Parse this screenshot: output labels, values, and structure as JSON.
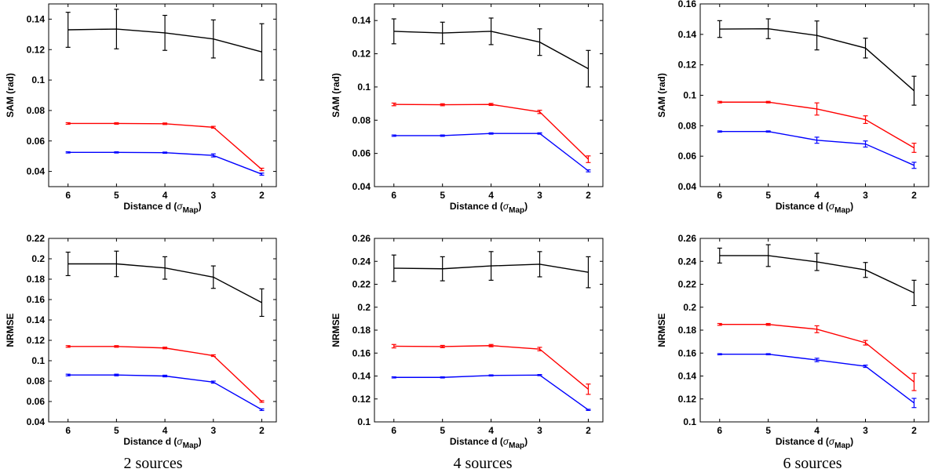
{
  "captions": [
    "2 sources",
    "4 sources",
    "6 sources"
  ],
  "colors": {
    "black": "#000000",
    "red": "#ff0000",
    "blue": "#0000ff"
  },
  "chart_data": [
    {
      "type": "line",
      "xlabel": "Distance d",
      "xlabel_sub": "Map",
      "ylabel": "SAM (rad)",
      "x": [
        6,
        5,
        4,
        3,
        2
      ],
      "xlim": [
        6.4,
        1.7
      ],
      "ylim": [
        0.03,
        0.15
      ],
      "yticks": [
        0.04,
        0.06,
        0.08,
        0.1,
        0.12,
        0.14
      ],
      "ytick_labels": [
        "0.04",
        "0.06",
        "0.08",
        "0.1",
        "0.12",
        "0.14"
      ],
      "series": [
        {
          "name": "black",
          "color": "#000000",
          "values": [
            0.133,
            0.1335,
            0.131,
            0.127,
            0.1185
          ],
          "errors": [
            0.0115,
            0.013,
            0.0115,
            0.0125,
            0.0185
          ]
        },
        {
          "name": "red",
          "color": "#ff0000",
          "values": [
            0.0715,
            0.0715,
            0.0713,
            0.069,
            0.0413
          ],
          "errors": [
            0.0005,
            0.0005,
            0.0005,
            0.0006,
            0.0008
          ]
        },
        {
          "name": "blue",
          "color": "#0000ff",
          "values": [
            0.0525,
            0.0525,
            0.0523,
            0.0505,
            0.0382
          ],
          "errors": [
            0.0004,
            0.0004,
            0.0004,
            0.001,
            0.0007
          ]
        }
      ]
    },
    {
      "type": "line",
      "xlabel": "Distance d",
      "xlabel_sub": "Map",
      "ylabel": "SAM (rad)",
      "x": [
        6,
        5,
        4,
        3,
        2
      ],
      "xlim": [
        6.4,
        1.7
      ],
      "ylim": [
        0.04,
        0.15
      ],
      "yticks": [
        0.04,
        0.06,
        0.08,
        0.1,
        0.12,
        0.14
      ],
      "ytick_labels": [
        "0.04",
        "0.06",
        "0.08",
        "0.1",
        "0.12",
        "0.14"
      ],
      "series": [
        {
          "name": "black",
          "color": "#000000",
          "values": [
            0.1335,
            0.1325,
            0.1335,
            0.127,
            0.111
          ],
          "errors": [
            0.0075,
            0.0065,
            0.008,
            0.008,
            0.011
          ]
        },
        {
          "name": "red",
          "color": "#ff0000",
          "values": [
            0.0895,
            0.0893,
            0.0895,
            0.085,
            0.0565
          ],
          "errors": [
            0.0008,
            0.0006,
            0.0006,
            0.001,
            0.002
          ]
        },
        {
          "name": "blue",
          "color": "#0000ff",
          "values": [
            0.0707,
            0.0707,
            0.072,
            0.072,
            0.0495
          ],
          "errors": [
            0.0004,
            0.0004,
            0.0004,
            0.0004,
            0.0006
          ]
        }
      ]
    },
    {
      "type": "line",
      "xlabel": "Distance d",
      "xlabel_sub": "Map",
      "ylabel": "SAM (rad)",
      "x": [
        6,
        5,
        4,
        3,
        2
      ],
      "xlim": [
        6.4,
        1.7
      ],
      "ylim": [
        0.04,
        0.16
      ],
      "yticks": [
        0.04,
        0.06,
        0.08,
        0.1,
        0.12,
        0.14,
        0.16
      ],
      "ytick_labels": [
        "0.04",
        "0.06",
        "0.08",
        "0.1",
        "0.12",
        "0.14",
        "0.16"
      ],
      "series": [
        {
          "name": "black",
          "color": "#000000",
          "values": [
            0.1435,
            0.1437,
            0.1393,
            0.131,
            0.103
          ],
          "errors": [
            0.0055,
            0.0065,
            0.0095,
            0.0065,
            0.0095
          ]
        },
        {
          "name": "red",
          "color": "#ff0000",
          "values": [
            0.0955,
            0.0955,
            0.091,
            0.084,
            0.0655
          ],
          "errors": [
            0.0005,
            0.0005,
            0.004,
            0.0025,
            0.003
          ]
        },
        {
          "name": "blue",
          "color": "#0000ff",
          "values": [
            0.0762,
            0.0762,
            0.0705,
            0.068,
            0.054
          ],
          "errors": [
            0.0004,
            0.0004,
            0.002,
            0.002,
            0.002
          ]
        }
      ]
    },
    {
      "type": "line",
      "xlabel": "Distance d",
      "xlabel_sub": "Map",
      "ylabel": "NRMSE",
      "x": [
        6,
        5,
        4,
        3,
        2
      ],
      "xlim": [
        6.4,
        1.7
      ],
      "ylim": [
        0.04,
        0.22
      ],
      "yticks": [
        0.04,
        0.06,
        0.08,
        0.1,
        0.12,
        0.14,
        0.16,
        0.18,
        0.2,
        0.22
      ],
      "ytick_labels": [
        "0.04",
        "0.06",
        "0.08",
        "0.1",
        "0.12",
        "0.14",
        "0.16",
        "0.18",
        "0.2",
        "0.22"
      ],
      "series": [
        {
          "name": "black",
          "color": "#000000",
          "values": [
            0.195,
            0.195,
            0.191,
            0.182,
            0.157
          ],
          "errors": [
            0.0115,
            0.0125,
            0.011,
            0.011,
            0.0135
          ]
        },
        {
          "name": "red",
          "color": "#ff0000",
          "values": [
            0.114,
            0.114,
            0.1125,
            0.105,
            0.06
          ],
          "errors": [
            0.0008,
            0.0008,
            0.0008,
            0.0008,
            0.0008
          ]
        },
        {
          "name": "blue",
          "color": "#0000ff",
          "values": [
            0.086,
            0.086,
            0.085,
            0.079,
            0.052
          ],
          "errors": [
            0.0008,
            0.0008,
            0.0008,
            0.001,
            0.0008
          ]
        }
      ]
    },
    {
      "type": "line",
      "xlabel": "Distance d",
      "xlabel_sub": "Map",
      "ylabel": "NRMSE",
      "x": [
        6,
        5,
        4,
        3,
        2
      ],
      "xlim": [
        6.4,
        1.7
      ],
      "ylim": [
        0.1,
        0.26
      ],
      "yticks": [
        0.1,
        0.12,
        0.14,
        0.16,
        0.18,
        0.2,
        0.22,
        0.24,
        0.26
      ],
      "ytick_labels": [
        "0.1",
        "0.12",
        "0.14",
        "0.16",
        "0.18",
        "0.2",
        "0.22",
        "0.24",
        "0.26"
      ],
      "series": [
        {
          "name": "black",
          "color": "#000000",
          "values": [
            0.234,
            0.2335,
            0.236,
            0.2375,
            0.2305
          ],
          "errors": [
            0.0115,
            0.0105,
            0.0125,
            0.011,
            0.0135
          ]
        },
        {
          "name": "red",
          "color": "#ff0000",
          "values": [
            0.166,
            0.1657,
            0.1665,
            0.1635,
            0.1285
          ],
          "errors": [
            0.0015,
            0.001,
            0.001,
            0.0015,
            0.0045
          ]
        },
        {
          "name": "blue",
          "color": "#0000ff",
          "values": [
            0.1388,
            0.1388,
            0.1405,
            0.1408,
            0.1105
          ],
          "errors": [
            0.0005,
            0.0005,
            0.0005,
            0.0005,
            0.0005
          ]
        }
      ]
    },
    {
      "type": "line",
      "xlabel": "Distance d",
      "xlabel_sub": "Map",
      "ylabel": "NRMSE",
      "x": [
        6,
        5,
        4,
        3,
        2
      ],
      "xlim": [
        6.4,
        1.7
      ],
      "ylim": [
        0.1,
        0.26
      ],
      "yticks": [
        0.1,
        0.12,
        0.14,
        0.16,
        0.18,
        0.2,
        0.22,
        0.24,
        0.26
      ],
      "ytick_labels": [
        "0.1",
        "0.12",
        "0.14",
        "0.16",
        "0.18",
        "0.2",
        "0.22",
        "0.24",
        "0.26"
      ],
      "series": [
        {
          "name": "black",
          "color": "#000000",
          "values": [
            0.245,
            0.245,
            0.2395,
            0.2325,
            0.2125
          ],
          "errors": [
            0.0065,
            0.0095,
            0.0075,
            0.0065,
            0.011
          ]
        },
        {
          "name": "red",
          "color": "#ff0000",
          "values": [
            0.185,
            0.185,
            0.1808,
            0.169,
            0.1348
          ],
          "errors": [
            0.0008,
            0.0008,
            0.003,
            0.002,
            0.0075
          ]
        },
        {
          "name": "blue",
          "color": "#0000ff",
          "values": [
            0.159,
            0.159,
            0.154,
            0.1485,
            0.1165
          ],
          "errors": [
            0.0005,
            0.0005,
            0.0015,
            0.001,
            0.004
          ]
        }
      ]
    }
  ]
}
